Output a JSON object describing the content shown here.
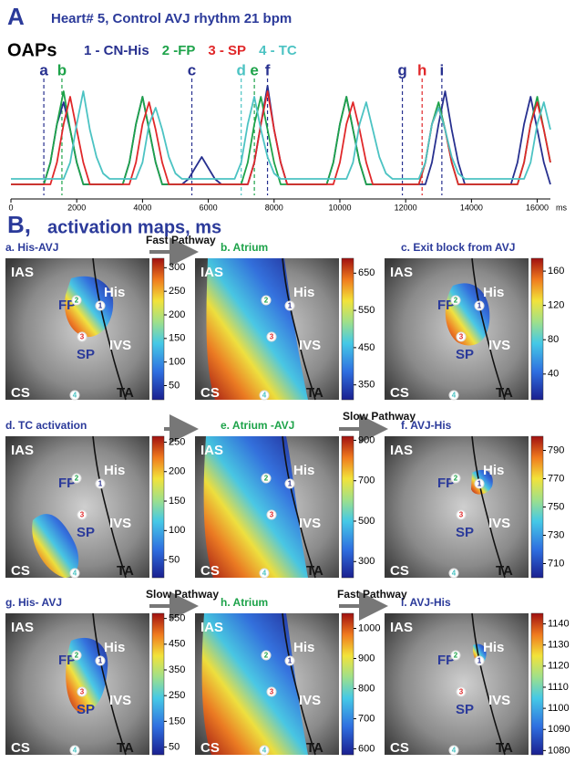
{
  "panel_a_label": "A",
  "subtitle": "Heart# 5, Control AVJ rhythm 21 bpm",
  "trace_heading": "OAPs",
  "chart_data": {
    "type": "line",
    "x": [
      0,
      200,
      400,
      600,
      800,
      1000,
      1200,
      1400,
      1600,
      1800,
      2000,
      2200,
      2400,
      2600,
      2800,
      3000,
      3200,
      3400,
      3600,
      3800,
      4000,
      4200,
      4400,
      4600,
      4800,
      5000,
      5200,
      5400,
      5600,
      5800,
      6000,
      6200,
      6400,
      6600,
      6800,
      7000,
      7200,
      7400,
      7600,
      7800,
      8000,
      8200,
      8400,
      8600,
      8800,
      9000,
      9200,
      9400,
      9600,
      9800,
      10000,
      10200,
      10400,
      10600,
      10800,
      11000,
      11200,
      11400,
      11600,
      11800,
      12000,
      12200,
      12400,
      12600,
      12800,
      13000,
      13200,
      13400,
      13600,
      13800,
      14000,
      14200,
      14400,
      14600,
      14800,
      15000,
      15200,
      15400,
      15600,
      15800,
      16000,
      16200,
      16400
    ],
    "series": [
      {
        "name": "1 - CN-His",
        "color": "#27308f",
        "values": [
          0.1,
          0.1,
          0.1,
          0.1,
          0.1,
          0.1,
          0.3,
          0.65,
          0.85,
          0.6,
          0.3,
          0.1,
          0.1,
          0.1,
          0.1,
          0.1,
          0.1,
          0.1,
          0.3,
          0.65,
          0.9,
          0.6,
          0.3,
          0.1,
          0.1,
          0.1,
          0.1,
          0.15,
          0.25,
          0.35,
          0.25,
          0.15,
          0.1,
          0.1,
          0.1,
          0.1,
          0.1,
          0.3,
          0.65,
          1,
          0.6,
          0.3,
          0.1,
          0.1,
          0.1,
          0.1,
          0.1,
          0.1,
          0.1,
          0.3,
          0.65,
          0.9,
          0.6,
          0.3,
          0.1,
          0.1,
          0.1,
          0.1,
          0.1,
          0.1,
          0.1,
          0.1,
          0.1,
          0.1,
          0.3,
          0.65,
          0.95,
          0.6,
          0.3,
          0.1,
          0.1,
          0.1,
          0.1,
          0.1,
          0.1,
          0.1,
          0.1,
          0.3,
          0.65,
          0.9,
          0.6,
          0.3,
          0.1
        ]
      },
      {
        "name": "2 -FP",
        "color": "#1ea34a",
        "values": [
          0.1,
          0.1,
          0.1,
          0.1,
          0.1,
          0.1,
          0.3,
          0.65,
          0.95,
          0.6,
          0.3,
          0.1,
          0.1,
          0.1,
          0.1,
          0.1,
          0.1,
          0.1,
          0.3,
          0.65,
          0.9,
          0.6,
          0.3,
          0.1,
          0.1,
          0.1,
          0.1,
          0.1,
          0.1,
          0.1,
          0.1,
          0.1,
          0.1,
          0.1,
          0.1,
          0.1,
          0.3,
          0.65,
          0.9,
          0.6,
          0.3,
          0.1,
          0.1,
          0.1,
          0.1,
          0.1,
          0.1,
          0.1,
          0.1,
          0.3,
          0.65,
          0.9,
          0.6,
          0.3,
          0.1,
          0.1,
          0.1,
          0.1,
          0.1,
          0.1,
          0.1,
          0.1,
          0.1,
          0.3,
          0.65,
          0.85,
          0.6,
          0.3,
          0.1,
          0.1,
          0.1,
          0.1,
          0.1,
          0.1,
          0.1,
          0.1,
          0.1,
          0.1,
          0.3,
          0.65,
          0.9,
          0.6,
          0.3
        ]
      },
      {
        "name": "3 - SP",
        "color": "#e0282a",
        "values": [
          0.1,
          0.1,
          0.1,
          0.1,
          0.1,
          0.1,
          0.1,
          0.3,
          0.65,
          0.9,
          0.6,
          0.3,
          0.1,
          0.1,
          0.1,
          0.1,
          0.1,
          0.1,
          0.1,
          0.3,
          0.65,
          0.85,
          0.6,
          0.3,
          0.1,
          0.1,
          0.1,
          0.1,
          0.1,
          0.1,
          0.1,
          0.1,
          0.1,
          0.1,
          0.1,
          0.1,
          0.1,
          0.3,
          0.65,
          0.95,
          0.6,
          0.3,
          0.1,
          0.1,
          0.1,
          0.1,
          0.1,
          0.1,
          0.1,
          0.1,
          0.3,
          0.65,
          0.85,
          0.6,
          0.3,
          0.1,
          0.1,
          0.1,
          0.1,
          0.1,
          0.1,
          0.1,
          0.1,
          0.3,
          0.65,
          0.8,
          0.6,
          0.3,
          0.1,
          0.1,
          0.1,
          0.1,
          0.1,
          0.1,
          0.1,
          0.1,
          0.1,
          0.1,
          0.3,
          0.65,
          0.85,
          0.6,
          0.3
        ]
      },
      {
        "name": "4 - TC",
        "color": "#4cc3c3",
        "values": [
          0.15,
          0.15,
          0.15,
          0.15,
          0.15,
          0.15,
          0.15,
          0.15,
          0.15,
          0.3,
          0.65,
          0.95,
          0.6,
          0.35,
          0.2,
          0.15,
          0.15,
          0.15,
          0.15,
          0.15,
          0.3,
          0.65,
          0.8,
          0.6,
          0.35,
          0.2,
          0.15,
          0.15,
          0.15,
          0.15,
          0.15,
          0.15,
          0.15,
          0.15,
          0.15,
          0.3,
          0.65,
          0.9,
          0.6,
          0.35,
          0.2,
          0.15,
          0.15,
          0.15,
          0.15,
          0.15,
          0.15,
          0.15,
          0.15,
          0.15,
          0.15,
          0.15,
          0.3,
          0.65,
          0.85,
          0.6,
          0.35,
          0.2,
          0.15,
          0.15,
          0.15,
          0.15,
          0.15,
          0.3,
          0.65,
          0.8,
          0.6,
          0.35,
          0.2,
          0.15,
          0.15,
          0.15,
          0.15,
          0.15,
          0.15,
          0.15,
          0.15,
          0.15,
          0.15,
          0.3,
          0.65,
          0.85,
          0.6
        ]
      }
    ],
    "xlim": [
      0,
      16400
    ],
    "ylim": [
      0,
      1.05
    ],
    "xticks": [
      0,
      2000,
      4000,
      6000,
      8000,
      10000,
      12000,
      14000,
      16000
    ],
    "x_unit": "ms",
    "markers": [
      {
        "label": "a",
        "x": 1000,
        "color": "#27308f"
      },
      {
        "label": "b",
        "x": 1550,
        "color": "#1ea34a"
      },
      {
        "label": "c",
        "x": 5500,
        "color": "#27308f"
      },
      {
        "label": "d",
        "x": 7000,
        "color": "#4cc3c3"
      },
      {
        "label": "e",
        "x": 7400,
        "color": "#1ea34a"
      },
      {
        "label": "f",
        "x": 7800,
        "color": "#27308f"
      },
      {
        "label": "g",
        "x": 11900,
        "color": "#27308f"
      },
      {
        "label": "h",
        "x": 12500,
        "color": "#e0282a"
      },
      {
        "label": "i",
        "x": 13100,
        "color": "#27308f"
      }
    ]
  },
  "panel_b": {
    "label": "B,",
    "title": "activation maps, ms",
    "pathway_labels": [
      "Fast Pathway",
      "Slow Pathway",
      "Slow Pathway",
      "Fast Pathway"
    ],
    "maps": [
      {
        "title": "a. His-AVJ",
        "colorbar": {
          "lim": [
            20,
            320
          ],
          "ticks": [
            50,
            100,
            150,
            200,
            250,
            300
          ]
        },
        "regions": [
          "IAS",
          "His",
          "FP",
          "IVS",
          "SP",
          "CS",
          "TA"
        ],
        "electrodes": [
          "1",
          "2",
          "3",
          "4"
        ]
      },
      {
        "title": "b. Atrium",
        "colorbar": {
          "lim": [
            310,
            690
          ],
          "ticks": [
            350,
            450,
            550,
            650
          ]
        },
        "regions": [
          "IAS",
          "His",
          "IVS",
          "CS",
          "TA"
        ],
        "electrodes": [
          "1",
          "2",
          "3",
          "4"
        ]
      },
      {
        "title": "c.  Exit block from AVJ",
        "colorbar": {
          "lim": [
            10,
            175
          ],
          "ticks": [
            40,
            80,
            120,
            160
          ]
        },
        "regions": [
          "IAS",
          "His",
          "FP",
          "IVS",
          "SP",
          "CS",
          "TA"
        ],
        "electrodes": [
          "1",
          "2",
          "3",
          "4"
        ]
      },
      {
        "title": "d. TC activation",
        "colorbar": {
          "lim": [
            20,
            260
          ],
          "ticks": [
            50,
            100,
            150,
            200,
            250
          ]
        },
        "regions": [
          "IAS",
          "His",
          "FP",
          "IVS",
          "SP",
          "CS",
          "TA"
        ],
        "electrodes": [
          "1",
          "2",
          "3",
          "4"
        ]
      },
      {
        "title": "e. Atrium -AVJ",
        "colorbar": {
          "lim": [
            220,
            920
          ],
          "ticks": [
            300,
            500,
            700,
            900
          ]
        },
        "regions": [
          "IAS",
          "His",
          "IVS",
          "CS",
          "TA"
        ],
        "electrodes": [
          "1",
          "2",
          "3",
          "4"
        ]
      },
      {
        "title": "f.   AVJ-His",
        "colorbar": {
          "lim": [
            700,
            800
          ],
          "ticks": [
            710,
            730,
            750,
            770,
            790
          ]
        },
        "regions": [
          "IAS",
          "His",
          "FP",
          "IVS",
          "SP",
          "CS",
          "TA"
        ],
        "electrodes": [
          "1",
          "2",
          "3",
          "4"
        ]
      },
      {
        "title": "g. His- AVJ",
        "colorbar": {
          "lim": [
            20,
            570
          ],
          "ticks": [
            50,
            150,
            250,
            350,
            450,
            550
          ]
        },
        "regions": [
          "IAS",
          "His",
          "FP",
          "IVS",
          "SP",
          "CS",
          "TA"
        ],
        "electrodes": [
          "1",
          "2",
          "3",
          "4"
        ]
      },
      {
        "title": "h. Atrium",
        "colorbar": {
          "lim": [
            580,
            1050
          ],
          "ticks": [
            600,
            700,
            800,
            900,
            1000
          ]
        },
        "regions": [
          "IAS",
          "His",
          "IVS",
          "CS",
          "TA"
        ],
        "electrodes": [
          "1",
          "2",
          "3",
          "4"
        ]
      },
      {
        "title": "i.  AVJ-His",
        "colorbar": {
          "lim": [
            1078,
            1145
          ],
          "ticks": [
            1080,
            1090,
            1100,
            1110,
            1120,
            1130,
            1140
          ]
        },
        "regions": [
          "IAS",
          "His",
          "FP",
          "IVS",
          "SP",
          "CS",
          "TA"
        ],
        "electrodes": [
          "1",
          "2",
          "3",
          "4"
        ]
      }
    ]
  }
}
